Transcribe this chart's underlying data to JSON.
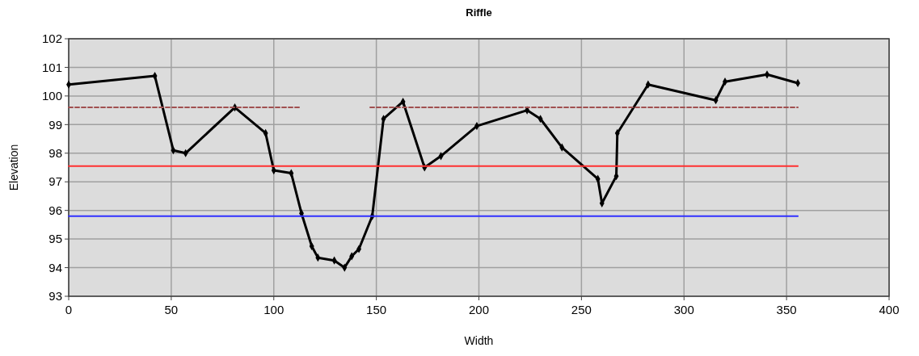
{
  "chart_data": {
    "type": "line",
    "title": "Riffle",
    "xlabel": "Width",
    "ylabel": "Elevation",
    "xlim": [
      0,
      400
    ],
    "xticks": [
      0,
      50,
      100,
      150,
      200,
      250,
      300,
      350,
      400
    ],
    "ylim": [
      93,
      102
    ],
    "yticks": [
      93,
      94,
      95,
      96,
      97,
      98,
      99,
      100,
      101,
      102
    ],
    "grid": true,
    "line_style": "solid",
    "series": [
      {
        "color": "#000000",
        "marker": "diamond",
        "x": [
          0,
          42,
          51,
          57,
          81,
          96,
          100,
          108.5,
          113.5,
          118.5,
          121.5,
          129.5,
          134.5,
          138,
          141.5,
          148,
          153.5,
          163,
          173.5,
          181.5,
          199,
          223.5,
          230,
          240.5,
          258,
          260,
          267,
          267.5,
          282.5,
          315.5,
          320,
          340.5,
          355.5
        ],
        "values": [
          100.4,
          100.7,
          98.1,
          98.0,
          99.6,
          98.7,
          97.4,
          97.3,
          95.9,
          94.75,
          94.35,
          94.25,
          94.0,
          94.4,
          94.65,
          95.8,
          99.2,
          99.8,
          97.5,
          97.9,
          98.95,
          99.5,
          99.2,
          98.2,
          97.1,
          96.25,
          97.2,
          98.7,
          100.4,
          99.85,
          100.5,
          100.75,
          100.45
        ]
      },
      {
        "color": "#a05050",
        "marker": "none",
        "line_style": "dashed",
        "x": [
          0,
          113,
          130,
          147,
          355.5
        ],
        "values": [
          99.6,
          99.6,
          null,
          99.6,
          99.6
        ]
      },
      {
        "color": "#ff3030",
        "marker": "none",
        "x": [
          0,
          355.5
        ],
        "values": [
          97.55,
          97.55
        ]
      },
      {
        "color": "#3030ff",
        "marker": "none",
        "x": [
          0,
          355.5
        ],
        "values": [
          95.8,
          95.8
        ]
      }
    ]
  }
}
